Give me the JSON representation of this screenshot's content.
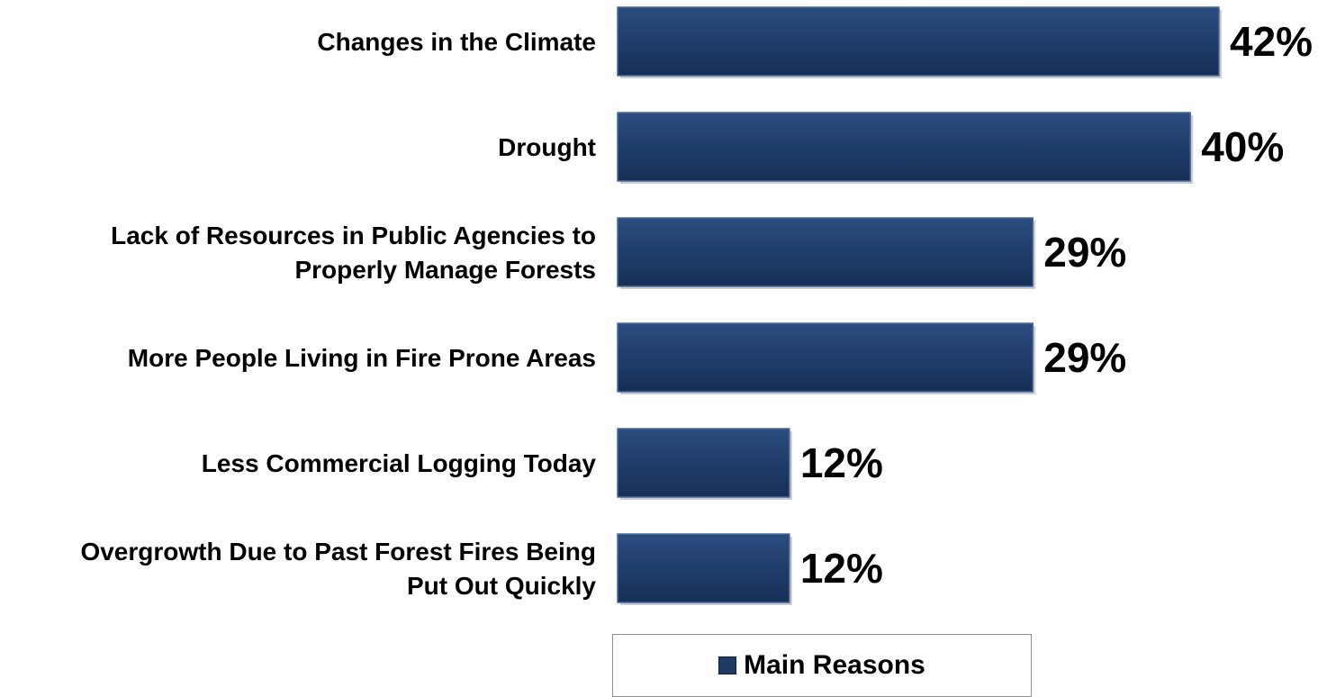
{
  "chart_data": {
    "type": "bar",
    "orientation": "horizontal",
    "categories": [
      [
        "Changes in the Climate"
      ],
      [
        "Drought"
      ],
      [
        "Lack of Resources in Public Agencies to",
        "Properly Manage Forests"
      ],
      [
        "More People Living in Fire Prone Areas"
      ],
      [
        "Less Commercial Logging Today"
      ],
      [
        "Overgrowth Due to Past Forest Fires Being",
        "Put Out Quickly"
      ]
    ],
    "series": [
      {
        "name": "Main Reasons",
        "values": [
          42,
          40,
          29,
          29,
          12,
          12
        ],
        "value_labels": [
          "42%",
          "40%",
          "29%",
          "29%",
          "12%",
          "12%"
        ],
        "color": "#1f3864"
      }
    ],
    "xlim": [
      0,
      42
    ],
    "grid": false,
    "legend": "bottom"
  }
}
